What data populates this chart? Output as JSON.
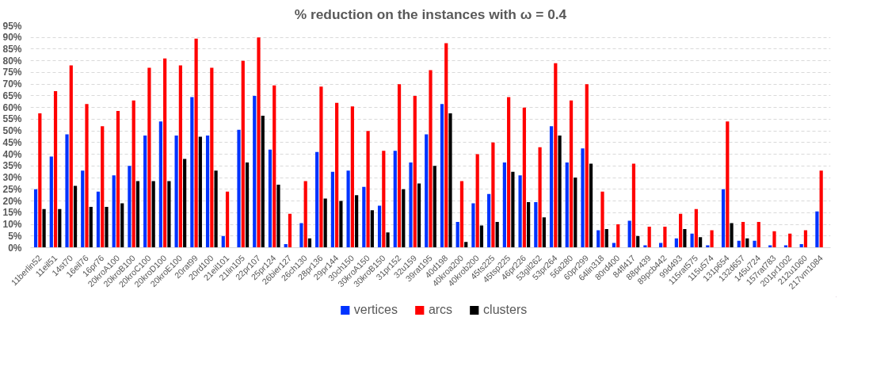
{
  "chart_data": {
    "type": "bar",
    "title": "% reduction on the instances with ω = 0.4",
    "categories": [
      "11berlin52",
      "11eil51",
      "14st70",
      "16eil76",
      "16pr76",
      "20kroA100",
      "20kroB100",
      "20kroC100",
      "20kroD100",
      "20kroE100",
      "20rat99",
      "20rd100",
      "21eil101",
      "21lin105",
      "22pr107",
      "25pr124",
      "26bier127",
      "26ch130",
      "28pr136",
      "29pr144",
      "30ch150",
      "30kroA150",
      "30kroB150",
      "31pr152",
      "32u159",
      "39rat195",
      "40d198",
      "40kroa200",
      "40krob200",
      "45ts225",
      "45tsp225",
      "46pr226",
      "53gil262",
      "53pr264",
      "56a280",
      "60pr299",
      "64lin318",
      "80rd400",
      "84fl417",
      "88pr439",
      "89pcb442",
      "99d493",
      "115rat575",
      "115u574",
      "131p654",
      "132d657",
      "145u724",
      "157rat783",
      "201pr1002",
      "212u1060",
      "217vm1084"
    ],
    "series": [
      {
        "name": "vertices",
        "color": "#0033ff",
        "values": [
          25,
          39,
          48.5,
          33,
          24,
          31,
          35,
          48,
          54,
          48,
          64.5,
          48,
          5,
          50.5,
          65,
          42,
          1.5,
          10.5,
          41,
          32.5,
          33,
          26,
          18,
          41.5,
          36.5,
          48.5,
          61.5,
          11,
          19,
          23,
          36.5,
          31,
          19.5,
          52,
          36.5,
          42.5,
          7.5,
          2,
          11.5,
          1,
          2,
          4,
          6,
          1,
          25,
          3,
          3,
          1,
          1,
          1.5,
          15.5
        ]
      },
      {
        "name": "arcs",
        "color": "#ff0000",
        "values": [
          57.5,
          67,
          78,
          61.5,
          52,
          58.5,
          63,
          77,
          81,
          78,
          89.5,
          77,
          24,
          80,
          90,
          69.5,
          14.5,
          28.5,
          69,
          62,
          60.5,
          50,
          41.5,
          70,
          65,
          76,
          87.5,
          28.5,
          40,
          45,
          64.5,
          60,
          43,
          79,
          63,
          70,
          24,
          10,
          36,
          9,
          9,
          14.5,
          16.5,
          7.5,
          54,
          11,
          11,
          7,
          6,
          7.5,
          33
        ]
      },
      {
        "name": "clusters",
        "color": "#000000",
        "values": [
          16.5,
          16.5,
          26.5,
          17.5,
          17.5,
          19,
          28.5,
          28.5,
          28.5,
          38,
          47.5,
          33,
          0,
          36.5,
          56.5,
          27,
          0,
          4,
          21,
          20,
          22.5,
          16,
          6.5,
          25,
          27.5,
          35,
          57.5,
          2.5,
          9.5,
          11,
          32.5,
          19.5,
          13,
          48,
          30,
          36,
          8,
          0,
          5,
          0,
          0,
          8,
          4.5,
          0,
          10.5,
          4,
          0,
          0,
          0,
          0,
          0
        ]
      }
    ],
    "ylim": [
      0,
      95
    ],
    "yticks": [
      {
        "value": 0,
        "label": "0%"
      },
      {
        "value": 5,
        "label": "5%"
      },
      {
        "value": 10,
        "label": "10%"
      },
      {
        "value": 15,
        "label": "15%"
      },
      {
        "value": 20,
        "label": "20%"
      },
      {
        "value": 25,
        "label": "25%"
      },
      {
        "value": 30,
        "label": "30%"
      },
      {
        "value": 35,
        "label": "35%"
      },
      {
        "value": 40,
        "label": "40%"
      },
      {
        "value": 45,
        "label": "45%"
      },
      {
        "value": 50,
        "label": "50%"
      },
      {
        "value": 55,
        "label": "55%"
      },
      {
        "value": 60,
        "label": "60%"
      },
      {
        "value": 65,
        "label": "65%"
      },
      {
        "value": 70,
        "label": "70%"
      },
      {
        "value": 75,
        "label": "75%"
      },
      {
        "value": 80,
        "label": "80%"
      },
      {
        "value": 85,
        "label": "85%"
      },
      {
        "value": 90,
        "label": "90%"
      },
      {
        "value": 95,
        "label": "95%"
      }
    ],
    "grid": "y",
    "legend": "bottom"
  }
}
